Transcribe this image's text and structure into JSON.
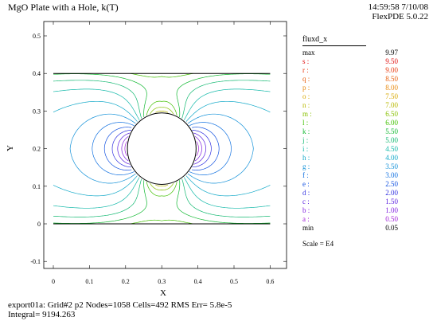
{
  "header": {
    "title": "MgO Plate with a Hole, k(T)",
    "time_date": "14:59:58 7/10/08",
    "version": "FlexPDE 5.0.22"
  },
  "legend": {
    "variable": "fluxd_x",
    "max_label": "max",
    "max_value": "9.97",
    "min_label": "min",
    "min_value": "0.05",
    "scale": "Scale = E4",
    "levels": [
      {
        "key": "s :",
        "value": "9.50",
        "color": "#e01010"
      },
      {
        "key": "r :",
        "value": "9.00",
        "color": "#e83a10"
      },
      {
        "key": "q :",
        "value": "8.50",
        "color": "#e86010"
      },
      {
        "key": "p :",
        "value": "8.00",
        "color": "#e88a10"
      },
      {
        "key": "o :",
        "value": "7.50",
        "color": "#d8a800"
      },
      {
        "key": "n :",
        "value": "7.00",
        "color": "#b8b800"
      },
      {
        "key": "m :",
        "value": "6.50",
        "color": "#88c000"
      },
      {
        "key": "l :",
        "value": "6.00",
        "color": "#40c000"
      },
      {
        "key": "k :",
        "value": "5.50",
        "color": "#10b830"
      },
      {
        "key": "j :",
        "value": "5.00",
        "color": "#10b870"
      },
      {
        "key": "i :",
        "value": "4.50",
        "color": "#10b8a8"
      },
      {
        "key": "h :",
        "value": "4.00",
        "color": "#10a8c8"
      },
      {
        "key": "g :",
        "value": "3.50",
        "color": "#1090d8"
      },
      {
        "key": "f :",
        "value": "3.00",
        "color": "#1070e0"
      },
      {
        "key": "e :",
        "value": "2.50",
        "color": "#1050e0"
      },
      {
        "key": "d :",
        "value": "2.00",
        "color": "#3030e0"
      },
      {
        "key": "c :",
        "value": "1.50",
        "color": "#5a20e0"
      },
      {
        "key": "b :",
        "value": "1.00",
        "color": "#8020e0"
      },
      {
        "key": "a :",
        "value": "0.50",
        "color": "#a020d8"
      }
    ]
  },
  "footer": {
    "line1": "export01a:  Grid#2  p2  Nodes=1058 Cells=492 RMS Err= 5.8e-5",
    "line2": "Integral=  9194.263"
  },
  "chart_data": {
    "type": "contour",
    "xlabel": "X",
    "ylabel": "Y",
    "xlim": [
      -0.03,
      0.63
    ],
    "ylim": [
      -0.12,
      0.53
    ],
    "x_ticks": [
      "0",
      "0.1",
      "0.2",
      "0.3",
      "0.4",
      "0.5",
      "0.6"
    ],
    "y_ticks": [
      "-0.1",
      "0",
      "0.1",
      "0.2",
      "0.3",
      "0.4",
      "0.5"
    ],
    "domain": {
      "x": [
        0,
        0.6
      ],
      "y": [
        0,
        0.4
      ]
    },
    "hole": {
      "cx": 0.3,
      "cy": 0.2,
      "r": 0.095
    },
    "field": "fluxd_x"
  }
}
